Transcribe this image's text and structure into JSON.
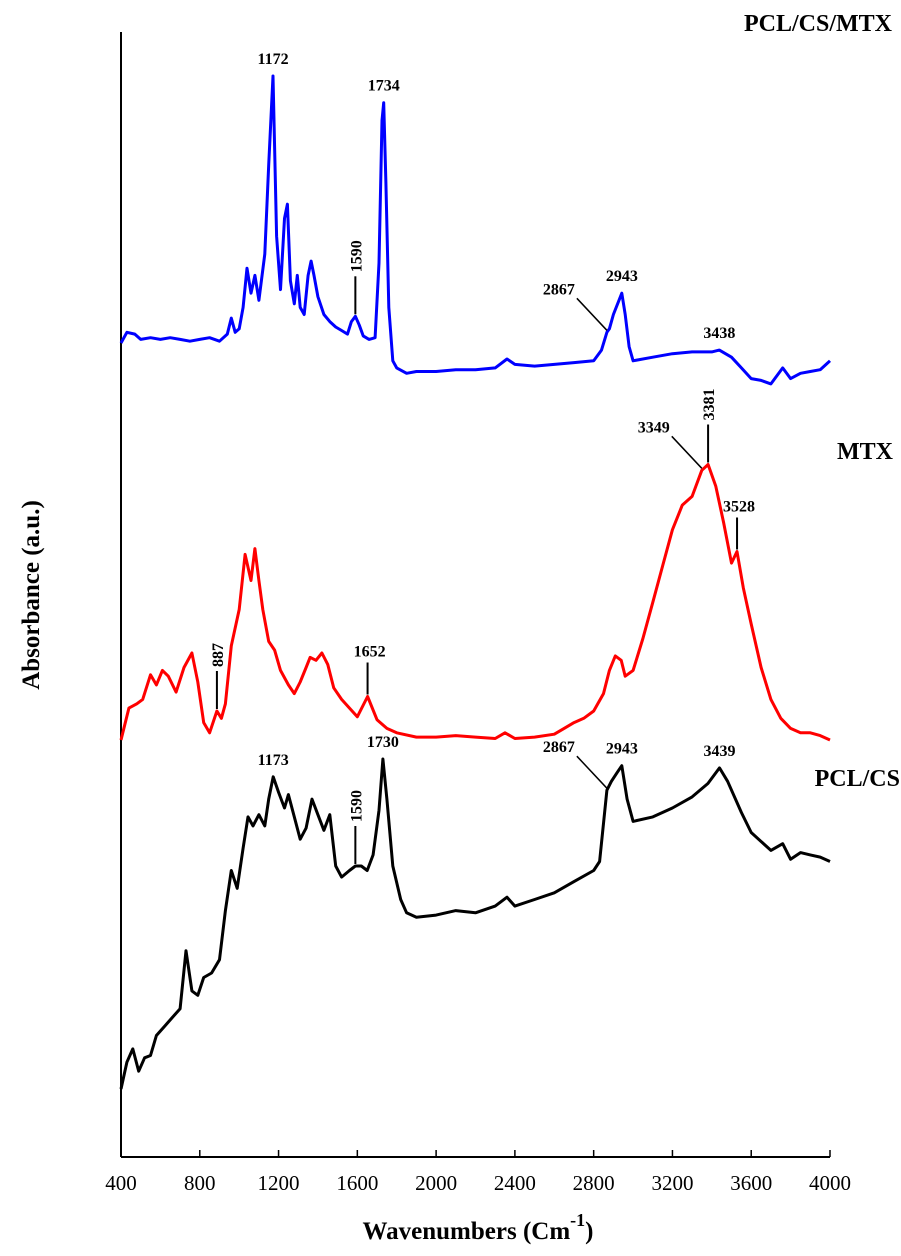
{
  "chart_data": {
    "type": "line",
    "title": "",
    "xlabel": "Wavenumbers (Cm",
    "xlabel_superscript": "-1",
    "xlabel_close": ")",
    "ylabel": "Absorbance (a.u.)",
    "xlim": [
      400,
      4000
    ],
    "x_ticks": [
      400,
      800,
      1200,
      1600,
      2000,
      2400,
      2800,
      3200,
      3600,
      4000
    ],
    "x_tick_labels": [
      "400",
      "800",
      "1200",
      "1600",
      "2000",
      "2400",
      "2800",
      "3200",
      "3600",
      "4000"
    ],
    "y_ticks_shown": false,
    "grid": false,
    "series": [
      {
        "name": "PCL/CS/MTX",
        "color": "#0000ff",
        "points": [
          [
            400,
            0.0
          ],
          [
            430,
            0.06
          ],
          [
            470,
            0.05
          ],
          [
            500,
            0.02
          ],
          [
            550,
            0.03
          ],
          [
            600,
            0.02
          ],
          [
            650,
            0.03
          ],
          [
            700,
            0.02
          ],
          [
            750,
            0.01
          ],
          [
            800,
            0.02
          ],
          [
            850,
            0.03
          ],
          [
            900,
            0.01
          ],
          [
            940,
            0.05
          ],
          [
            960,
            0.14
          ],
          [
            980,
            0.06
          ],
          [
            1000,
            0.08
          ],
          [
            1020,
            0.2
          ],
          [
            1040,
            0.42
          ],
          [
            1060,
            0.28
          ],
          [
            1080,
            0.38
          ],
          [
            1100,
            0.24
          ],
          [
            1130,
            0.5
          ],
          [
            1150,
            1.0
          ],
          [
            1172,
            1.5
          ],
          [
            1190,
            0.6
          ],
          [
            1210,
            0.3
          ],
          [
            1230,
            0.7
          ],
          [
            1245,
            0.78
          ],
          [
            1260,
            0.35
          ],
          [
            1280,
            0.22
          ],
          [
            1295,
            0.38
          ],
          [
            1310,
            0.2
          ],
          [
            1330,
            0.16
          ],
          [
            1350,
            0.38
          ],
          [
            1365,
            0.46
          ],
          [
            1380,
            0.38
          ],
          [
            1400,
            0.26
          ],
          [
            1430,
            0.16
          ],
          [
            1460,
            0.12
          ],
          [
            1490,
            0.09
          ],
          [
            1520,
            0.07
          ],
          [
            1550,
            0.05
          ],
          [
            1570,
            0.12
          ],
          [
            1590,
            0.15
          ],
          [
            1610,
            0.1
          ],
          [
            1630,
            0.04
          ],
          [
            1660,
            0.02
          ],
          [
            1690,
            0.03
          ],
          [
            1710,
            0.45
          ],
          [
            1725,
            1.25
          ],
          [
            1734,
            1.35
          ],
          [
            1745,
            0.9
          ],
          [
            1760,
            0.2
          ],
          [
            1780,
            -0.1
          ],
          [
            1800,
            -0.14
          ],
          [
            1850,
            -0.17
          ],
          [
            1900,
            -0.16
          ],
          [
            2000,
            -0.16
          ],
          [
            2100,
            -0.15
          ],
          [
            2200,
            -0.15
          ],
          [
            2300,
            -0.14
          ],
          [
            2360,
            -0.09
          ],
          [
            2400,
            -0.12
          ],
          [
            2500,
            -0.13
          ],
          [
            2600,
            -0.12
          ],
          [
            2700,
            -0.11
          ],
          [
            2800,
            -0.1
          ],
          [
            2840,
            -0.04
          ],
          [
            2867,
            0.06
          ],
          [
            2880,
            0.08
          ],
          [
            2900,
            0.16
          ],
          [
            2943,
            0.28
          ],
          [
            2960,
            0.16
          ],
          [
            2980,
            -0.02
          ],
          [
            3000,
            -0.1
          ],
          [
            3100,
            -0.08
          ],
          [
            3200,
            -0.06
          ],
          [
            3300,
            -0.05
          ],
          [
            3400,
            -0.05
          ],
          [
            3438,
            -0.04
          ],
          [
            3500,
            -0.08
          ],
          [
            3550,
            -0.14
          ],
          [
            3600,
            -0.2
          ],
          [
            3650,
            -0.21
          ],
          [
            3700,
            -0.23
          ],
          [
            3760,
            -0.14
          ],
          [
            3800,
            -0.2
          ],
          [
            3850,
            -0.17
          ],
          [
            3900,
            -0.16
          ],
          [
            3950,
            -0.15
          ],
          [
            3980,
            -0.12
          ],
          [
            4000,
            -0.1
          ]
        ]
      },
      {
        "name": "MTX",
        "color": "#ff0000",
        "points": [
          [
            400,
            0.0
          ],
          [
            440,
            0.22
          ],
          [
            480,
            0.25
          ],
          [
            510,
            0.28
          ],
          [
            550,
            0.45
          ],
          [
            580,
            0.38
          ],
          [
            610,
            0.48
          ],
          [
            640,
            0.44
          ],
          [
            680,
            0.33
          ],
          [
            720,
            0.5
          ],
          [
            760,
            0.6
          ],
          [
            790,
            0.4
          ],
          [
            820,
            0.12
          ],
          [
            850,
            0.05
          ],
          [
            887,
            0.2
          ],
          [
            910,
            0.15
          ],
          [
            930,
            0.25
          ],
          [
            960,
            0.65
          ],
          [
            1000,
            0.9
          ],
          [
            1030,
            1.28
          ],
          [
            1060,
            1.1
          ],
          [
            1080,
            1.32
          ],
          [
            1100,
            1.1
          ],
          [
            1120,
            0.9
          ],
          [
            1150,
            0.68
          ],
          [
            1180,
            0.62
          ],
          [
            1210,
            0.48
          ],
          [
            1250,
            0.38
          ],
          [
            1280,
            0.32
          ],
          [
            1310,
            0.4
          ],
          [
            1340,
            0.5
          ],
          [
            1360,
            0.57
          ],
          [
            1390,
            0.55
          ],
          [
            1420,
            0.6
          ],
          [
            1450,
            0.52
          ],
          [
            1480,
            0.36
          ],
          [
            1520,
            0.28
          ],
          [
            1560,
            0.22
          ],
          [
            1600,
            0.16
          ],
          [
            1652,
            0.3
          ],
          [
            1700,
            0.14
          ],
          [
            1750,
            0.08
          ],
          [
            1800,
            0.05
          ],
          [
            1900,
            0.02
          ],
          [
            2000,
            0.02
          ],
          [
            2100,
            0.03
          ],
          [
            2200,
            0.02
          ],
          [
            2300,
            0.01
          ],
          [
            2350,
            0.05
          ],
          [
            2400,
            0.01
          ],
          [
            2500,
            0.02
          ],
          [
            2600,
            0.04
          ],
          [
            2650,
            0.08
          ],
          [
            2700,
            0.12
          ],
          [
            2750,
            0.15
          ],
          [
            2800,
            0.2
          ],
          [
            2850,
            0.32
          ],
          [
            2880,
            0.48
          ],
          [
            2910,
            0.58
          ],
          [
            2940,
            0.55
          ],
          [
            2960,
            0.44
          ],
          [
            3000,
            0.48
          ],
          [
            3050,
            0.7
          ],
          [
            3100,
            0.95
          ],
          [
            3150,
            1.2
          ],
          [
            3200,
            1.45
          ],
          [
            3250,
            1.62
          ],
          [
            3300,
            1.68
          ],
          [
            3349,
            1.86
          ],
          [
            3381,
            1.9
          ],
          [
            3420,
            1.75
          ],
          [
            3460,
            1.5
          ],
          [
            3500,
            1.22
          ],
          [
            3528,
            1.3
          ],
          [
            3560,
            1.05
          ],
          [
            3600,
            0.8
          ],
          [
            3650,
            0.5
          ],
          [
            3700,
            0.28
          ],
          [
            3750,
            0.15
          ],
          [
            3800,
            0.08
          ],
          [
            3850,
            0.05
          ],
          [
            3900,
            0.05
          ],
          [
            3950,
            0.03
          ],
          [
            4000,
            0.0
          ]
        ]
      },
      {
        "name": "PCL/CS",
        "color": "#000000",
        "points": [
          [
            400,
            0.0
          ],
          [
            430,
            0.12
          ],
          [
            460,
            0.18
          ],
          [
            490,
            0.08
          ],
          [
            520,
            0.14
          ],
          [
            550,
            0.15
          ],
          [
            580,
            0.24
          ],
          [
            620,
            0.28
          ],
          [
            660,
            0.32
          ],
          [
            700,
            0.36
          ],
          [
            730,
            0.62
          ],
          [
            760,
            0.44
          ],
          [
            790,
            0.42
          ],
          [
            820,
            0.5
          ],
          [
            860,
            0.52
          ],
          [
            900,
            0.58
          ],
          [
            930,
            0.8
          ],
          [
            960,
            0.98
          ],
          [
            990,
            0.9
          ],
          [
            1020,
            1.08
          ],
          [
            1045,
            1.22
          ],
          [
            1070,
            1.18
          ],
          [
            1100,
            1.23
          ],
          [
            1130,
            1.18
          ],
          [
            1150,
            1.3
          ],
          [
            1173,
            1.4
          ],
          [
            1200,
            1.33
          ],
          [
            1230,
            1.26
          ],
          [
            1250,
            1.32
          ],
          [
            1280,
            1.22
          ],
          [
            1310,
            1.12
          ],
          [
            1340,
            1.17
          ],
          [
            1370,
            1.3
          ],
          [
            1400,
            1.23
          ],
          [
            1430,
            1.16
          ],
          [
            1460,
            1.23
          ],
          [
            1490,
            1.0
          ],
          [
            1520,
            0.95
          ],
          [
            1560,
            0.98
          ],
          [
            1590,
            1.0
          ],
          [
            1620,
            1.0
          ],
          [
            1650,
            0.98
          ],
          [
            1680,
            1.05
          ],
          [
            1710,
            1.25
          ],
          [
            1730,
            1.48
          ],
          [
            1750,
            1.3
          ],
          [
            1780,
            1.0
          ],
          [
            1820,
            0.85
          ],
          [
            1850,
            0.79
          ],
          [
            1900,
            0.77
          ],
          [
            2000,
            0.78
          ],
          [
            2100,
            0.8
          ],
          [
            2200,
            0.79
          ],
          [
            2300,
            0.82
          ],
          [
            2360,
            0.86
          ],
          [
            2400,
            0.82
          ],
          [
            2500,
            0.85
          ],
          [
            2600,
            0.88
          ],
          [
            2700,
            0.93
          ],
          [
            2800,
            0.98
          ],
          [
            2830,
            1.02
          ],
          [
            2867,
            1.34
          ],
          [
            2890,
            1.38
          ],
          [
            2920,
            1.42
          ],
          [
            2943,
            1.45
          ],
          [
            2970,
            1.3
          ],
          [
            3000,
            1.2
          ],
          [
            3100,
            1.22
          ],
          [
            3200,
            1.26
          ],
          [
            3300,
            1.31
          ],
          [
            3380,
            1.37
          ],
          [
            3439,
            1.44
          ],
          [
            3480,
            1.38
          ],
          [
            3550,
            1.24
          ],
          [
            3600,
            1.15
          ],
          [
            3700,
            1.07
          ],
          [
            3760,
            1.1
          ],
          [
            3800,
            1.03
          ],
          [
            3850,
            1.06
          ],
          [
            3900,
            1.05
          ],
          [
            3950,
            1.04
          ],
          [
            4000,
            1.02
          ]
        ]
      }
    ],
    "peak_annotations": [
      {
        "series": "PCL/CS/MTX",
        "label": "1172",
        "style": "top"
      },
      {
        "series": "PCL/CS/MTX",
        "label": "1734",
        "style": "top"
      },
      {
        "series": "PCL/CS/MTX",
        "label": "1590",
        "style": "vertical"
      },
      {
        "series": "PCL/CS/MTX",
        "label": "2867",
        "style": "leader"
      },
      {
        "series": "PCL/CS/MTX",
        "label": "2943",
        "style": "top"
      },
      {
        "series": "PCL/CS/MTX",
        "label": "3438",
        "style": "top"
      },
      {
        "series": "MTX",
        "label": "887",
        "style": "vertical"
      },
      {
        "series": "MTX",
        "label": "1652",
        "style": "tick"
      },
      {
        "series": "MTX",
        "label": "3349",
        "style": "leader"
      },
      {
        "series": "MTX",
        "label": "3381",
        "style": "vertical"
      },
      {
        "series": "MTX",
        "label": "3528",
        "style": "tick"
      },
      {
        "series": "PCL/CS",
        "label": "1173",
        "style": "top"
      },
      {
        "series": "PCL/CS",
        "label": "1590",
        "style": "vertical"
      },
      {
        "series": "PCL/CS",
        "label": "1730",
        "style": "top"
      },
      {
        "series": "PCL/CS",
        "label": "2867",
        "style": "leader"
      },
      {
        "series": "PCL/CS",
        "label": "2943",
        "style": "top"
      },
      {
        "series": "PCL/CS",
        "label": "3439",
        "style": "top"
      }
    ],
    "series_labels": [
      "PCL/CS/MTX",
      "MTX",
      "PCL/CS"
    ]
  }
}
